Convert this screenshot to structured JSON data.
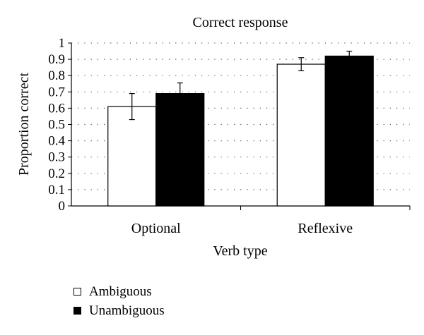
{
  "chart_data": {
    "type": "bar",
    "title": "Correct response",
    "xlabel": "Verb type",
    "ylabel": "Proportion correct",
    "categories": [
      "Optional",
      "Reflexive"
    ],
    "series": [
      {
        "name": "Ambiguous",
        "values": [
          0.61,
          0.87
        ],
        "errors": [
          0.08,
          0.04
        ],
        "color": "#ffffff"
      },
      {
        "name": "Unambiguous",
        "values": [
          0.69,
          0.92
        ],
        "errors": [
          0.065,
          0.03
        ],
        "color": "#000000"
      }
    ],
    "ylim": [
      0,
      1
    ],
    "yticks": [
      "0",
      "0.1",
      "0.2",
      "0.3",
      "0.4",
      "0.5",
      "0.6",
      "0.7",
      "0.8",
      "0.9",
      "1"
    ],
    "grid": "dotted horizontal",
    "legend_position": "bottom-left"
  }
}
